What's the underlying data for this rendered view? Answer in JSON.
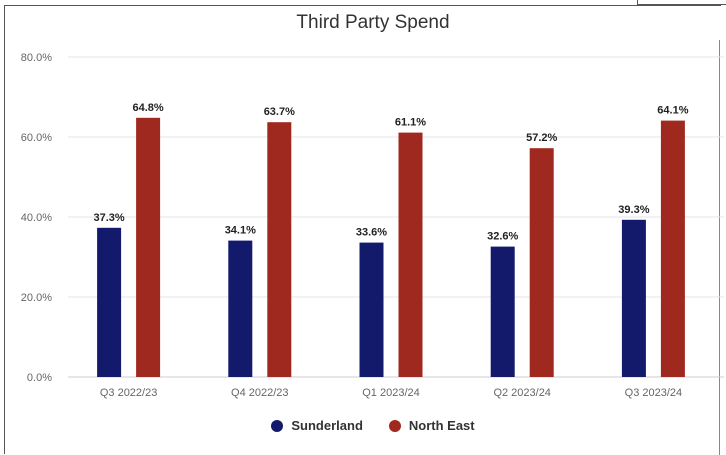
{
  "chart_data": {
    "type": "bar",
    "title": "Third Party Spend",
    "categories": [
      "Q3 2022/23",
      "Q4 2022/23",
      "Q1 2023/24",
      "Q2 2023/24",
      "Q3 2023/24"
    ],
    "series": [
      {
        "name": "Sunderland",
        "values": [
          37.3,
          34.1,
          33.6,
          32.6,
          39.3
        ],
        "labels": [
          "37.3%",
          "34.1%",
          "33.6%",
          "32.6%",
          "39.3%"
        ],
        "color": "#131a6b"
      },
      {
        "name": "North East",
        "values": [
          64.8,
          63.7,
          61.1,
          57.2,
          64.1
        ],
        "labels": [
          "64.8%",
          "63.7%",
          "61.1%",
          "57.2%",
          "64.1%"
        ],
        "color": "#a0291f"
      }
    ],
    "yticks": [
      "0.0%",
      "20.0%",
      "40.0%",
      "60.0%",
      "80.0%"
    ],
    "ylim": [
      0,
      80
    ],
    "grid": true,
    "legend_position": "bottom"
  }
}
